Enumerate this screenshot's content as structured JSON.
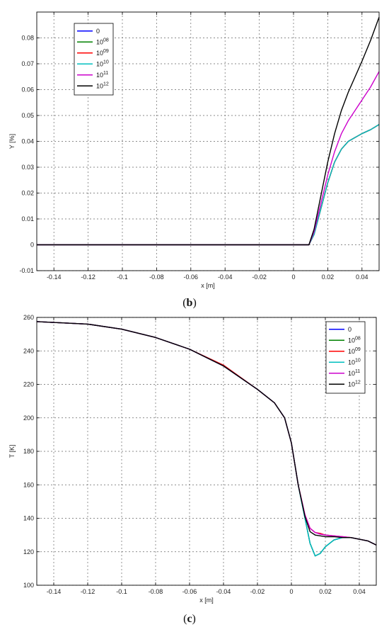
{
  "captions": {
    "b": "(b)",
    "b_open": "(",
    "b_letter": "b",
    "b_close": ")",
    "c_open": "(",
    "c_letter": "c",
    "c_close": ")"
  },
  "colors": {
    "0": "#0000ff",
    "10^08": "#008000",
    "10^09": "#ff0000",
    "10^10": "#00bfbf",
    "10^11": "#cc00cc",
    "10^12": "#000000"
  },
  "chart_data": [
    {
      "id": "b",
      "type": "line",
      "xlabel": "x [m]",
      "ylabel": "Y [%]",
      "xlim": [
        -0.15,
        0.05
      ],
      "ylim": [
        -0.01,
        0.09
      ],
      "xticks": [
        -0.14,
        -0.12,
        -0.1,
        -0.08,
        -0.06,
        -0.04,
        -0.02,
        0,
        0.02,
        0.04
      ],
      "xtick_labels": [
        "-0.14",
        "-0.12",
        "-0.1",
        "-0.08",
        "-0.06",
        "-0.04",
        "-0.02",
        "0",
        "0.02",
        "0.04"
      ],
      "yticks": [
        -0.01,
        0,
        0.01,
        0.02,
        0.03,
        0.04,
        0.05,
        0.06,
        0.07,
        0.08
      ],
      "ytick_labels": [
        "-0.01",
        "0",
        "0.01",
        "0.02",
        "0.03",
        "0.04",
        "0.05",
        "0.06",
        "0.07",
        "0.08"
      ],
      "grid": true,
      "legend_position": "top-left",
      "legend": [
        {
          "base": "0",
          "exp": "",
          "color": "#0000ff"
        },
        {
          "base": "10",
          "exp": "08",
          "color": "#008000"
        },
        {
          "base": "10",
          "exp": "09",
          "color": "#ff0000"
        },
        {
          "base": "10",
          "exp": "10",
          "color": "#00bfbf"
        },
        {
          "base": "10",
          "exp": "11",
          "color": "#cc00cc"
        },
        {
          "base": "10",
          "exp": "12",
          "color": "#000000"
        }
      ],
      "series": [
        {
          "name": "0",
          "color": "#0000ff",
          "x": [
            -0.15,
            0.009,
            0.012,
            0.016,
            0.02,
            0.024,
            0.028,
            0.032,
            0.036,
            0.04,
            0.045,
            0.05
          ],
          "y": [
            0,
            0,
            0.004,
            0.014,
            0.024,
            0.032,
            0.037,
            0.04,
            0.0415,
            0.043,
            0.0445,
            0.0465
          ]
        },
        {
          "name": "10^08",
          "color": "#008000",
          "x": [
            -0.15,
            0.009,
            0.012,
            0.016,
            0.02,
            0.024,
            0.028,
            0.032,
            0.036,
            0.04,
            0.045,
            0.05
          ],
          "y": [
            0,
            0,
            0.004,
            0.014,
            0.024,
            0.032,
            0.037,
            0.04,
            0.0415,
            0.043,
            0.0445,
            0.0465
          ]
        },
        {
          "name": "10^09",
          "color": "#ff0000",
          "x": [
            -0.15,
            0.009,
            0.012,
            0.016,
            0.02,
            0.024,
            0.028,
            0.032,
            0.036,
            0.04,
            0.045,
            0.05
          ],
          "y": [
            0,
            0,
            0.004,
            0.014,
            0.024,
            0.032,
            0.037,
            0.04,
            0.0415,
            0.043,
            0.0445,
            0.0465
          ]
        },
        {
          "name": "10^10",
          "color": "#00bfbf",
          "x": [
            -0.15,
            0.009,
            0.012,
            0.016,
            0.02,
            0.024,
            0.028,
            0.032,
            0.036,
            0.04,
            0.045,
            0.05
          ],
          "y": [
            0,
            0,
            0.004,
            0.014,
            0.024,
            0.032,
            0.037,
            0.04,
            0.0415,
            0.043,
            0.0445,
            0.0465
          ]
        },
        {
          "name": "10^11",
          "color": "#cc00cc",
          "x": [
            -0.15,
            0.009,
            0.012,
            0.016,
            0.02,
            0.024,
            0.028,
            0.032,
            0.036,
            0.04,
            0.045,
            0.05
          ],
          "y": [
            0,
            0,
            0.005,
            0.016,
            0.027,
            0.036,
            0.043,
            0.048,
            0.052,
            0.056,
            0.061,
            0.067
          ]
        },
        {
          "name": "10^12",
          "color": "#000000",
          "x": [
            -0.15,
            0.009,
            0.012,
            0.016,
            0.02,
            0.024,
            0.028,
            0.032,
            0.036,
            0.04,
            0.045,
            0.05
          ],
          "y": [
            0,
            0,
            0.006,
            0.019,
            0.032,
            0.043,
            0.052,
            0.059,
            0.065,
            0.071,
            0.079,
            0.088
          ]
        }
      ]
    },
    {
      "id": "c",
      "type": "line",
      "xlabel": "x [m]",
      "ylabel": "T [K]",
      "xlim": [
        -0.15,
        0.05
      ],
      "ylim": [
        100,
        260
      ],
      "xticks": [
        -0.14,
        -0.12,
        -0.1,
        -0.08,
        -0.06,
        -0.04,
        -0.02,
        0,
        0.02,
        0.04
      ],
      "xtick_labels": [
        "-0.14",
        "-0.12",
        "-0.1",
        "-0.08",
        "-0.06",
        "-0.04",
        "-0.02",
        "0",
        "0.02",
        "0.04"
      ],
      "yticks": [
        100,
        120,
        140,
        160,
        180,
        200,
        220,
        240,
        260
      ],
      "ytick_labels": [
        "100",
        "120",
        "140",
        "160",
        "180",
        "200",
        "220",
        "240",
        "260"
      ],
      "grid": true,
      "legend_position": "top-right",
      "legend": [
        {
          "base": "0",
          "exp": "",
          "color": "#0000ff"
        },
        {
          "base": "10",
          "exp": "08",
          "color": "#008000"
        },
        {
          "base": "10",
          "exp": "09",
          "color": "#ff0000"
        },
        {
          "base": "10",
          "exp": "10",
          "color": "#00bfbf"
        },
        {
          "base": "10",
          "exp": "11",
          "color": "#cc00cc"
        },
        {
          "base": "10",
          "exp": "12",
          "color": "#000000"
        }
      ],
      "series": [
        {
          "name": "0",
          "color": "#0000ff",
          "x": [
            -0.15,
            -0.12,
            -0.1,
            -0.08,
            -0.06,
            -0.04,
            -0.02,
            -0.01,
            -0.004,
            0,
            0.004,
            0.008,
            0.011,
            0.014,
            0.017,
            0.02,
            0.025,
            0.03,
            0.035,
            0.04,
            0.045,
            0.05
          ],
          "y": [
            257.5,
            256,
            253,
            248,
            241,
            231,
            217,
            209,
            200,
            185,
            160,
            140,
            125,
            117.5,
            119,
            123,
            127,
            128.5,
            128.5,
            127.5,
            126.5,
            124
          ]
        },
        {
          "name": "10^08",
          "color": "#008000",
          "x": [
            -0.15,
            -0.12,
            -0.1,
            -0.08,
            -0.06,
            -0.04,
            -0.02,
            -0.01,
            -0.004,
            0,
            0.004,
            0.008,
            0.011,
            0.014,
            0.017,
            0.02,
            0.025,
            0.03,
            0.035,
            0.04,
            0.045,
            0.05
          ],
          "y": [
            257.5,
            256,
            253,
            248,
            241,
            231,
            217,
            209,
            200,
            185,
            160,
            140,
            125,
            117.5,
            119,
            123,
            127,
            128.5,
            128.5,
            127.5,
            126.5,
            124
          ]
        },
        {
          "name": "10^09",
          "color": "#ff0000",
          "x": [
            -0.15,
            -0.12,
            -0.1,
            -0.08,
            -0.06,
            -0.04,
            -0.02,
            -0.01,
            -0.004,
            0,
            0.004,
            0.008,
            0.011,
            0.014,
            0.017,
            0.02,
            0.025,
            0.03,
            0.035,
            0.04,
            0.045,
            0.05
          ],
          "y": [
            257.5,
            256,
            253,
            248,
            241,
            231.5,
            217,
            209,
            200,
            185,
            160,
            142,
            134,
            131.5,
            131,
            130,
            129.5,
            129,
            128.5,
            127.5,
            126.5,
            124
          ]
        },
        {
          "name": "10^10",
          "color": "#00bfbf",
          "x": [
            -0.15,
            -0.12,
            -0.1,
            -0.08,
            -0.06,
            -0.04,
            -0.02,
            -0.01,
            -0.004,
            0,
            0.004,
            0.008,
            0.011,
            0.014,
            0.017,
            0.02,
            0.025,
            0.03,
            0.035,
            0.04,
            0.045,
            0.05
          ],
          "y": [
            257.5,
            256,
            253,
            248,
            241,
            231,
            217,
            209,
            200,
            185,
            160,
            140,
            125,
            117.5,
            119,
            123,
            127,
            128.5,
            128.5,
            127.5,
            126.5,
            124
          ]
        },
        {
          "name": "10^11",
          "color": "#cc00cc",
          "x": [
            -0.15,
            -0.12,
            -0.1,
            -0.08,
            -0.06,
            -0.04,
            -0.02,
            -0.01,
            -0.004,
            0,
            0.004,
            0.008,
            0.011,
            0.014,
            0.017,
            0.02,
            0.025,
            0.03,
            0.035,
            0.04,
            0.045,
            0.05
          ],
          "y": [
            257.5,
            256,
            253,
            248,
            241,
            231,
            217,
            209,
            200,
            185,
            160,
            142,
            134,
            131.5,
            130.5,
            130,
            129.5,
            129,
            128.5,
            127.5,
            126.5,
            124
          ]
        },
        {
          "name": "10^12",
          "color": "#000000",
          "x": [
            -0.15,
            -0.12,
            -0.1,
            -0.08,
            -0.06,
            -0.04,
            -0.02,
            -0.01,
            -0.004,
            0,
            0.004,
            0.008,
            0.011,
            0.014,
            0.017,
            0.02,
            0.025,
            0.03,
            0.035,
            0.04,
            0.045,
            0.05
          ],
          "y": [
            257.5,
            256,
            253,
            248,
            241,
            231,
            217,
            209,
            200,
            185,
            160,
            141,
            132,
            130,
            129.5,
            129,
            129,
            128.5,
            128.5,
            127.5,
            126.5,
            124
          ]
        }
      ]
    }
  ]
}
